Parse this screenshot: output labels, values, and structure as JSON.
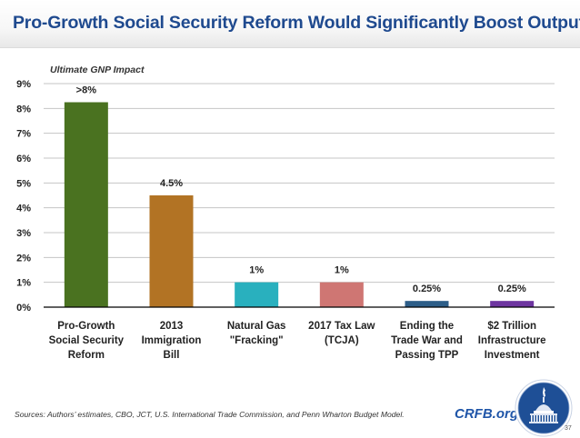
{
  "header": {
    "title": "Pro-Growth Social Security Reform Would Significantly Boost Output"
  },
  "chart_data": {
    "type": "bar",
    "title": "Ultimate GNP Impact",
    "xlabel": "",
    "ylabel": "",
    "ylim": [
      0,
      9
    ],
    "yticks": [
      "0%",
      "1%",
      "2%",
      "3%",
      "4%",
      "5%",
      "6%",
      "7%",
      "8%",
      "9%"
    ],
    "grid": true,
    "legend": "none",
    "categories": [
      [
        "Pro-Growth",
        "Social Security",
        "Reform"
      ],
      [
        "2013",
        "Immigration",
        "Bill"
      ],
      [
        "Natural Gas",
        "\"Fracking\""
      ],
      [
        "2017 Tax Law",
        "(TCJA)"
      ],
      [
        "Ending the",
        "Trade War and",
        "Passing TPP"
      ],
      [
        "$2 Trillion",
        "Infrastructure",
        "Investment"
      ]
    ],
    "values": [
      8.25,
      4.5,
      1,
      1,
      0.25,
      0.25
    ],
    "data_labels": [
      ">8%",
      "4.5%",
      "1%",
      "1%",
      "0.25%",
      "0.25%"
    ],
    "colors": [
      "#4a7220",
      "#b27324",
      "#29b0be",
      "#cf7673",
      "#2d5e88",
      "#6e35a0"
    ]
  },
  "footer": {
    "sources": "Sources: Authors’ estimates, CBO, JCT, U.S. International Trade Commission, and Penn Wharton Budget Model.",
    "brand": "CRFB.org",
    "logo_icon": "capitol-dome-icon",
    "slide_number": "37"
  }
}
